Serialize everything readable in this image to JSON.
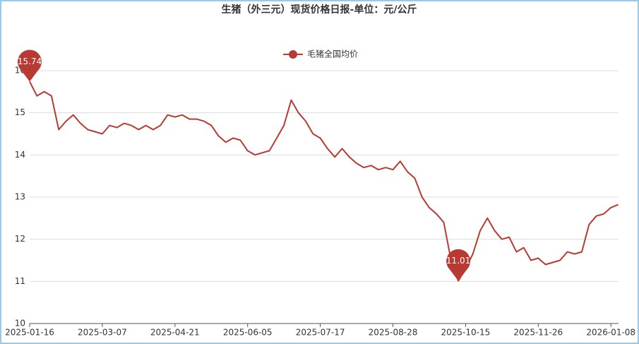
{
  "chart_data": {
    "type": "line",
    "title": "生猪（外三元）现货价格日报-单位：元/公斤",
    "categories": [
      "2025-01-16",
      null,
      null,
      null,
      null,
      null,
      null,
      null,
      null,
      null,
      "2025-03-07",
      null,
      null,
      null,
      null,
      null,
      null,
      null,
      null,
      null,
      "2025-04-21",
      null,
      null,
      null,
      null,
      null,
      null,
      null,
      null,
      null,
      "2025-06-05",
      null,
      null,
      null,
      null,
      null,
      null,
      null,
      null,
      null,
      "2025-07-17",
      null,
      null,
      null,
      null,
      null,
      null,
      null,
      null,
      null,
      "2025-08-28",
      null,
      null,
      null,
      null,
      null,
      null,
      null,
      null,
      null,
      "2025-10-15",
      null,
      null,
      null,
      null,
      null,
      null,
      null,
      null,
      null,
      "2025-11-26",
      null,
      null,
      null,
      null,
      null,
      null,
      null,
      null,
      null,
      "2026-01-08",
      null
    ],
    "series": [
      {
        "name": "毛猪全国均价",
        "color": "#b83a32",
        "values": [
          15.74,
          15.4,
          15.5,
          15.4,
          14.6,
          14.8,
          14.95,
          14.75,
          14.6,
          14.55,
          14.5,
          14.7,
          14.65,
          14.75,
          14.7,
          14.6,
          14.7,
          14.6,
          14.7,
          14.95,
          14.9,
          14.95,
          14.85,
          14.85,
          14.8,
          14.7,
          14.45,
          14.3,
          14.4,
          14.35,
          14.1,
          14.0,
          14.05,
          14.1,
          14.4,
          14.7,
          15.3,
          15.0,
          14.8,
          14.5,
          14.4,
          14.15,
          13.95,
          14.15,
          13.95,
          13.8,
          13.7,
          13.75,
          13.65,
          13.7,
          13.65,
          13.85,
          13.6,
          13.45,
          13.0,
          12.75,
          12.6,
          12.4,
          11.5,
          11.01,
          11.3,
          11.65,
          12.2,
          12.5,
          12.2,
          12.0,
          12.05,
          11.7,
          11.8,
          11.5,
          11.55,
          11.4,
          11.45,
          11.5,
          11.7,
          11.65,
          11.7,
          12.35,
          12.55,
          12.6,
          12.75,
          12.82
        ]
      }
    ],
    "ylim": [
      10,
      16
    ],
    "yticks": [
      10,
      11,
      12,
      13,
      14,
      15,
      16
    ],
    "grid": true
  }
}
